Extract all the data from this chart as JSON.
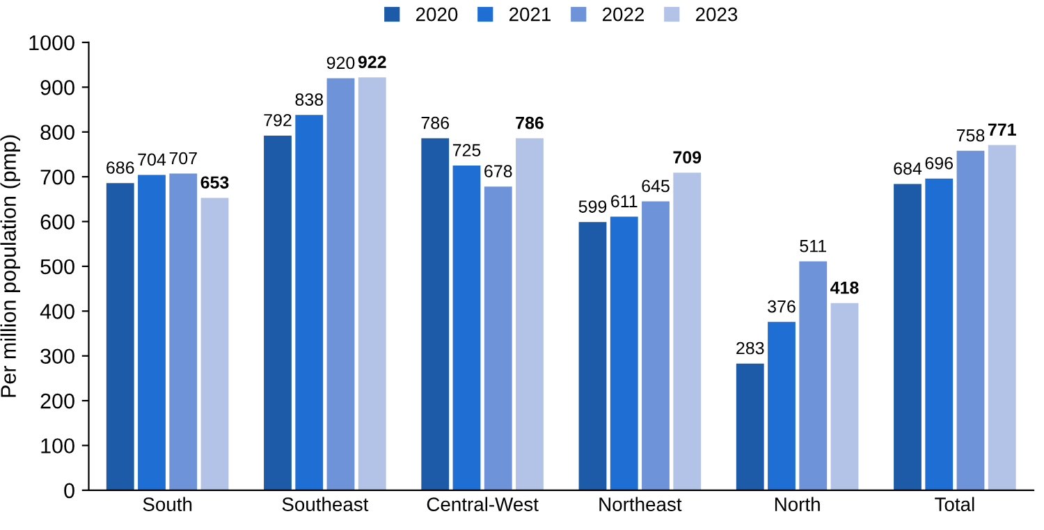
{
  "chart_data": {
    "type": "bar",
    "ylabel": "Per million population (pmp)",
    "categories": [
      "South",
      "Southeast",
      "Central-West",
      "Northeast",
      "North",
      "Total"
    ],
    "series": [
      {
        "name": "2020",
        "color": "#1d5aa8",
        "values": [
          686,
          792,
          786,
          599,
          283,
          684
        ]
      },
      {
        "name": "2021",
        "color": "#1f6ed4",
        "values": [
          704,
          838,
          725,
          611,
          376,
          696
        ]
      },
      {
        "name": "2022",
        "color": "#6e93d8",
        "values": [
          707,
          920,
          678,
          645,
          511,
          758
        ]
      },
      {
        "name": "2023",
        "color": "#b3c3e8",
        "values": [
          653,
          922,
          786,
          709,
          418,
          771
        ]
      }
    ],
    "ylim": [
      0,
      1000
    ],
    "yticks": [
      0,
      100,
      200,
      300,
      400,
      500,
      600,
      700,
      800,
      900,
      1000
    ],
    "data_labels": true,
    "legend": "top",
    "grid": false
  }
}
